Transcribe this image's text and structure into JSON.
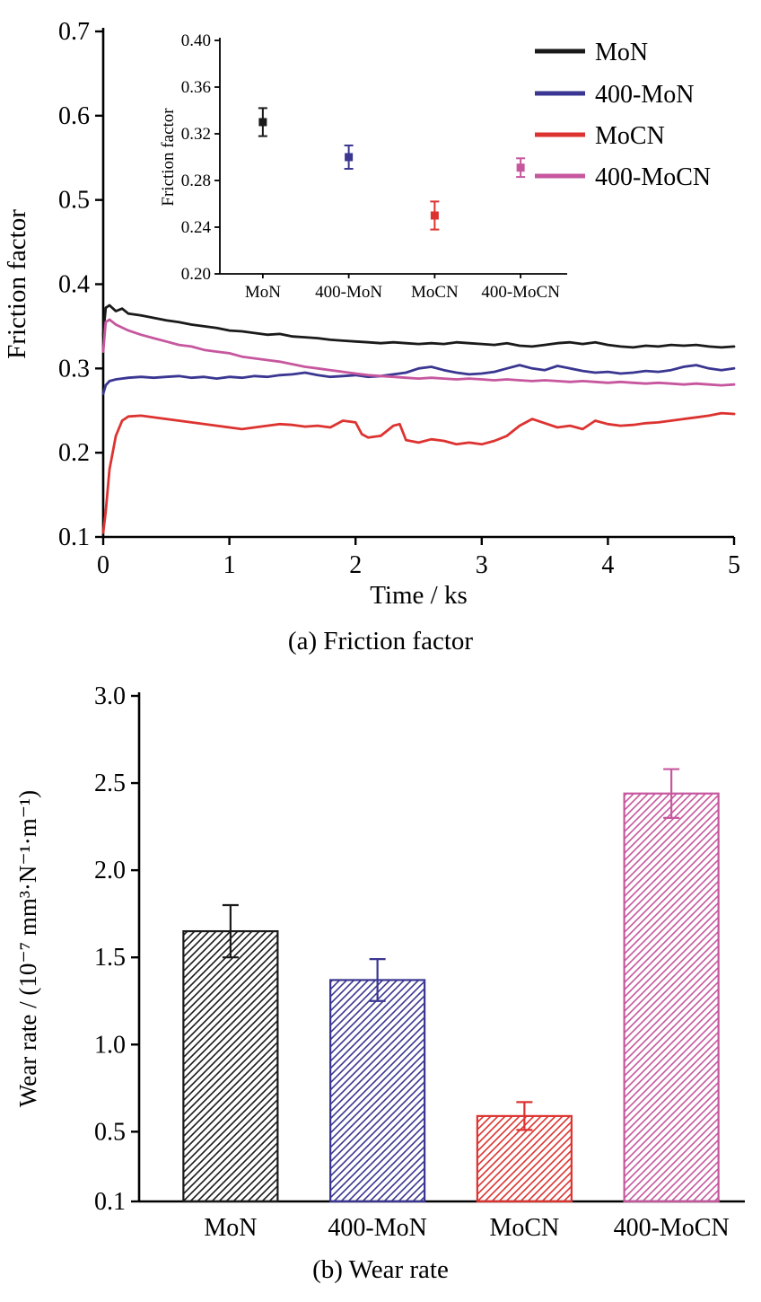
{
  "figure": {
    "caption_a": "(a) Friction factor",
    "caption_b": "(b) Wear rate"
  },
  "colors": {
    "MoN": "#1a1a1a",
    "MoN400": "#3a3691",
    "MoCN": "#dd3330",
    "MoCN400": "#c6579e"
  },
  "chart_data": [
    {
      "id": "friction-line",
      "type": "line",
      "title": "(a) Friction factor",
      "xlabel": "Time / ks",
      "ylabel": "Friction factor",
      "xlim": [
        0,
        5
      ],
      "ylim": [
        0.1,
        0.7
      ],
      "xticks": [
        "0",
        "1",
        "2",
        "3",
        "4",
        "5"
      ],
      "yticks": [
        "0.1",
        "0.2",
        "0.3",
        "0.4",
        "0.5",
        "0.6",
        "0.7"
      ],
      "grid": false,
      "legend_position": "top-right",
      "series": [
        {
          "name": "MoN",
          "color": "#1a1a1a",
          "points": [
            [
              0,
              0.34
            ],
            [
              0.02,
              0.372
            ],
            [
              0.05,
              0.375
            ],
            [
              0.1,
              0.368
            ],
            [
              0.15,
              0.371
            ],
            [
              0.2,
              0.365
            ],
            [
              0.3,
              0.363
            ],
            [
              0.4,
              0.36
            ],
            [
              0.5,
              0.357
            ],
            [
              0.6,
              0.355
            ],
            [
              0.7,
              0.352
            ],
            [
              0.8,
              0.35
            ],
            [
              0.9,
              0.348
            ],
            [
              1.0,
              0.345
            ],
            [
              1.1,
              0.344
            ],
            [
              1.2,
              0.342
            ],
            [
              1.3,
              0.34
            ],
            [
              1.4,
              0.341
            ],
            [
              1.5,
              0.338
            ],
            [
              1.6,
              0.337
            ],
            [
              1.7,
              0.336
            ],
            [
              1.8,
              0.334
            ],
            [
              1.9,
              0.333
            ],
            [
              2.0,
              0.332
            ],
            [
              2.1,
              0.331
            ],
            [
              2.2,
              0.33
            ],
            [
              2.3,
              0.331
            ],
            [
              2.4,
              0.33
            ],
            [
              2.5,
              0.329
            ],
            [
              2.6,
              0.33
            ],
            [
              2.7,
              0.329
            ],
            [
              2.8,
              0.331
            ],
            [
              2.9,
              0.33
            ],
            [
              3.0,
              0.329
            ],
            [
              3.1,
              0.328
            ],
            [
              3.2,
              0.33
            ],
            [
              3.3,
              0.327
            ],
            [
              3.4,
              0.326
            ],
            [
              3.5,
              0.328
            ],
            [
              3.6,
              0.33
            ],
            [
              3.7,
              0.331
            ],
            [
              3.8,
              0.329
            ],
            [
              3.9,
              0.331
            ],
            [
              4.0,
              0.328
            ],
            [
              4.1,
              0.326
            ],
            [
              4.2,
              0.325
            ],
            [
              4.3,
              0.327
            ],
            [
              4.4,
              0.326
            ],
            [
              4.5,
              0.328
            ],
            [
              4.6,
              0.327
            ],
            [
              4.7,
              0.328
            ],
            [
              4.8,
              0.326
            ],
            [
              4.9,
              0.325
            ],
            [
              5.0,
              0.326
            ]
          ]
        },
        {
          "name": "400-MoN",
          "color": "#3a3691",
          "points": [
            [
              0,
              0.27
            ],
            [
              0.02,
              0.28
            ],
            [
              0.05,
              0.285
            ],
            [
              0.1,
              0.287
            ],
            [
              0.2,
              0.289
            ],
            [
              0.3,
              0.29
            ],
            [
              0.4,
              0.289
            ],
            [
              0.5,
              0.29
            ],
            [
              0.6,
              0.291
            ],
            [
              0.7,
              0.289
            ],
            [
              0.8,
              0.29
            ],
            [
              0.9,
              0.288
            ],
            [
              1.0,
              0.29
            ],
            [
              1.1,
              0.289
            ],
            [
              1.2,
              0.291
            ],
            [
              1.3,
              0.29
            ],
            [
              1.4,
              0.292
            ],
            [
              1.5,
              0.293
            ],
            [
              1.6,
              0.295
            ],
            [
              1.7,
              0.292
            ],
            [
              1.8,
              0.29
            ],
            [
              1.9,
              0.291
            ],
            [
              2.0,
              0.292
            ],
            [
              2.1,
              0.29
            ],
            [
              2.2,
              0.291
            ],
            [
              2.3,
              0.293
            ],
            [
              2.4,
              0.295
            ],
            [
              2.5,
              0.3
            ],
            [
              2.6,
              0.302
            ],
            [
              2.7,
              0.298
            ],
            [
              2.8,
              0.295
            ],
            [
              2.9,
              0.293
            ],
            [
              3.0,
              0.294
            ],
            [
              3.1,
              0.296
            ],
            [
              3.2,
              0.3
            ],
            [
              3.3,
              0.304
            ],
            [
              3.4,
              0.3
            ],
            [
              3.5,
              0.298
            ],
            [
              3.6,
              0.303
            ],
            [
              3.7,
              0.3
            ],
            [
              3.8,
              0.297
            ],
            [
              3.9,
              0.295
            ],
            [
              4.0,
              0.296
            ],
            [
              4.1,
              0.294
            ],
            [
              4.2,
              0.295
            ],
            [
              4.3,
              0.297
            ],
            [
              4.4,
              0.296
            ],
            [
              4.5,
              0.298
            ],
            [
              4.6,
              0.302
            ],
            [
              4.7,
              0.304
            ],
            [
              4.8,
              0.3
            ],
            [
              4.9,
              0.298
            ],
            [
              5.0,
              0.3
            ]
          ]
        },
        {
          "name": "MoCN",
          "color": "#dd3330",
          "points": [
            [
              0,
              0.105
            ],
            [
              0.02,
              0.13
            ],
            [
              0.05,
              0.18
            ],
            [
              0.1,
              0.22
            ],
            [
              0.15,
              0.238
            ],
            [
              0.2,
              0.243
            ],
            [
              0.3,
              0.244
            ],
            [
              0.4,
              0.242
            ],
            [
              0.5,
              0.24
            ],
            [
              0.6,
              0.238
            ],
            [
              0.7,
              0.236
            ],
            [
              0.8,
              0.234
            ],
            [
              0.9,
              0.232
            ],
            [
              1.0,
              0.23
            ],
            [
              1.1,
              0.228
            ],
            [
              1.2,
              0.23
            ],
            [
              1.3,
              0.232
            ],
            [
              1.4,
              0.234
            ],
            [
              1.5,
              0.233
            ],
            [
              1.6,
              0.231
            ],
            [
              1.7,
              0.232
            ],
            [
              1.8,
              0.23
            ],
            [
              1.9,
              0.238
            ],
            [
              2.0,
              0.236
            ],
            [
              2.05,
              0.222
            ],
            [
              2.1,
              0.218
            ],
            [
              2.2,
              0.22
            ],
            [
              2.3,
              0.232
            ],
            [
              2.35,
              0.234
            ],
            [
              2.4,
              0.215
            ],
            [
              2.5,
              0.212
            ],
            [
              2.6,
              0.216
            ],
            [
              2.7,
              0.214
            ],
            [
              2.8,
              0.21
            ],
            [
              2.9,
              0.212
            ],
            [
              3.0,
              0.21
            ],
            [
              3.1,
              0.214
            ],
            [
              3.2,
              0.22
            ],
            [
              3.3,
              0.232
            ],
            [
              3.4,
              0.24
            ],
            [
              3.5,
              0.235
            ],
            [
              3.6,
              0.23
            ],
            [
              3.7,
              0.232
            ],
            [
              3.8,
              0.228
            ],
            [
              3.9,
              0.238
            ],
            [
              4.0,
              0.234
            ],
            [
              4.1,
              0.232
            ],
            [
              4.2,
              0.233
            ],
            [
              4.3,
              0.235
            ],
            [
              4.4,
              0.236
            ],
            [
              4.5,
              0.238
            ],
            [
              4.6,
              0.24
            ],
            [
              4.7,
              0.242
            ],
            [
              4.8,
              0.244
            ],
            [
              4.9,
              0.247
            ],
            [
              5.0,
              0.246
            ]
          ]
        },
        {
          "name": "400-MoCN",
          "color": "#c6579e",
          "points": [
            [
              0,
              0.32
            ],
            [
              0.02,
              0.355
            ],
            [
              0.05,
              0.358
            ],
            [
              0.1,
              0.352
            ],
            [
              0.2,
              0.345
            ],
            [
              0.3,
              0.34
            ],
            [
              0.4,
              0.336
            ],
            [
              0.5,
              0.332
            ],
            [
              0.6,
              0.328
            ],
            [
              0.7,
              0.326
            ],
            [
              0.8,
              0.322
            ],
            [
              0.9,
              0.32
            ],
            [
              1.0,
              0.318
            ],
            [
              1.1,
              0.314
            ],
            [
              1.2,
              0.312
            ],
            [
              1.3,
              0.31
            ],
            [
              1.4,
              0.308
            ],
            [
              1.5,
              0.305
            ],
            [
              1.6,
              0.302
            ],
            [
              1.7,
              0.3
            ],
            [
              1.8,
              0.298
            ],
            [
              1.9,
              0.296
            ],
            [
              2.0,
              0.294
            ],
            [
              2.1,
              0.292
            ],
            [
              2.2,
              0.291
            ],
            [
              2.3,
              0.29
            ],
            [
              2.4,
              0.289
            ],
            [
              2.5,
              0.288
            ],
            [
              2.6,
              0.289
            ],
            [
              2.7,
              0.288
            ],
            [
              2.8,
              0.287
            ],
            [
              2.9,
              0.288
            ],
            [
              3.0,
              0.287
            ],
            [
              3.1,
              0.286
            ],
            [
              3.2,
              0.287
            ],
            [
              3.3,
              0.286
            ],
            [
              3.4,
              0.285
            ],
            [
              3.5,
              0.286
            ],
            [
              3.6,
              0.285
            ],
            [
              3.7,
              0.284
            ],
            [
              3.8,
              0.285
            ],
            [
              3.9,
              0.284
            ],
            [
              4.0,
              0.283
            ],
            [
              4.1,
              0.284
            ],
            [
              4.2,
              0.283
            ],
            [
              4.3,
              0.282
            ],
            [
              4.4,
              0.283
            ],
            [
              4.5,
              0.282
            ],
            [
              4.6,
              0.281
            ],
            [
              4.7,
              0.282
            ],
            [
              4.8,
              0.281
            ],
            [
              4.9,
              0.28
            ],
            [
              5.0,
              0.281
            ]
          ]
        }
      ]
    },
    {
      "id": "friction-inset",
      "type": "scatter",
      "ylabel": "Friction factor",
      "categories": [
        "MoN",
        "400-MoN",
        "MoCN",
        "400-MoCN"
      ],
      "values": [
        0.33,
        0.3,
        0.25,
        0.291
      ],
      "errors": [
        0.012,
        0.01,
        0.012,
        0.008
      ],
      "colors": [
        "#1a1a1a",
        "#3a3691",
        "#dd3330",
        "#c6579e"
      ],
      "ylim": [
        0.2,
        0.4
      ],
      "yticks": [
        "0.20",
        "0.24",
        "0.28",
        "0.32",
        "0.36",
        "0.40"
      ],
      "grid": false,
      "marker": "square"
    },
    {
      "id": "wear-bar",
      "type": "bar",
      "title": "(b) Wear rate",
      "ylabel": "Wear rate / (10⁻⁷ mm³·N⁻¹·m⁻¹)",
      "categories": [
        "MoN",
        "400-MoN",
        "MoCN",
        "400-MoCN"
      ],
      "values": [
        1.65,
        1.37,
        0.59,
        2.44
      ],
      "errors": [
        0.15,
        0.12,
        0.08,
        0.14
      ],
      "colors": [
        "#1a1a1a",
        "#3a3691",
        "#dd3330",
        "#c6579e"
      ],
      "ylim": [
        0.1,
        3.0
      ],
      "yticks": [
        "0.1",
        "0.5",
        "1.0",
        "1.5",
        "2.0",
        "2.5",
        "3.0"
      ],
      "grid": false,
      "hatch": "diagonal"
    }
  ]
}
